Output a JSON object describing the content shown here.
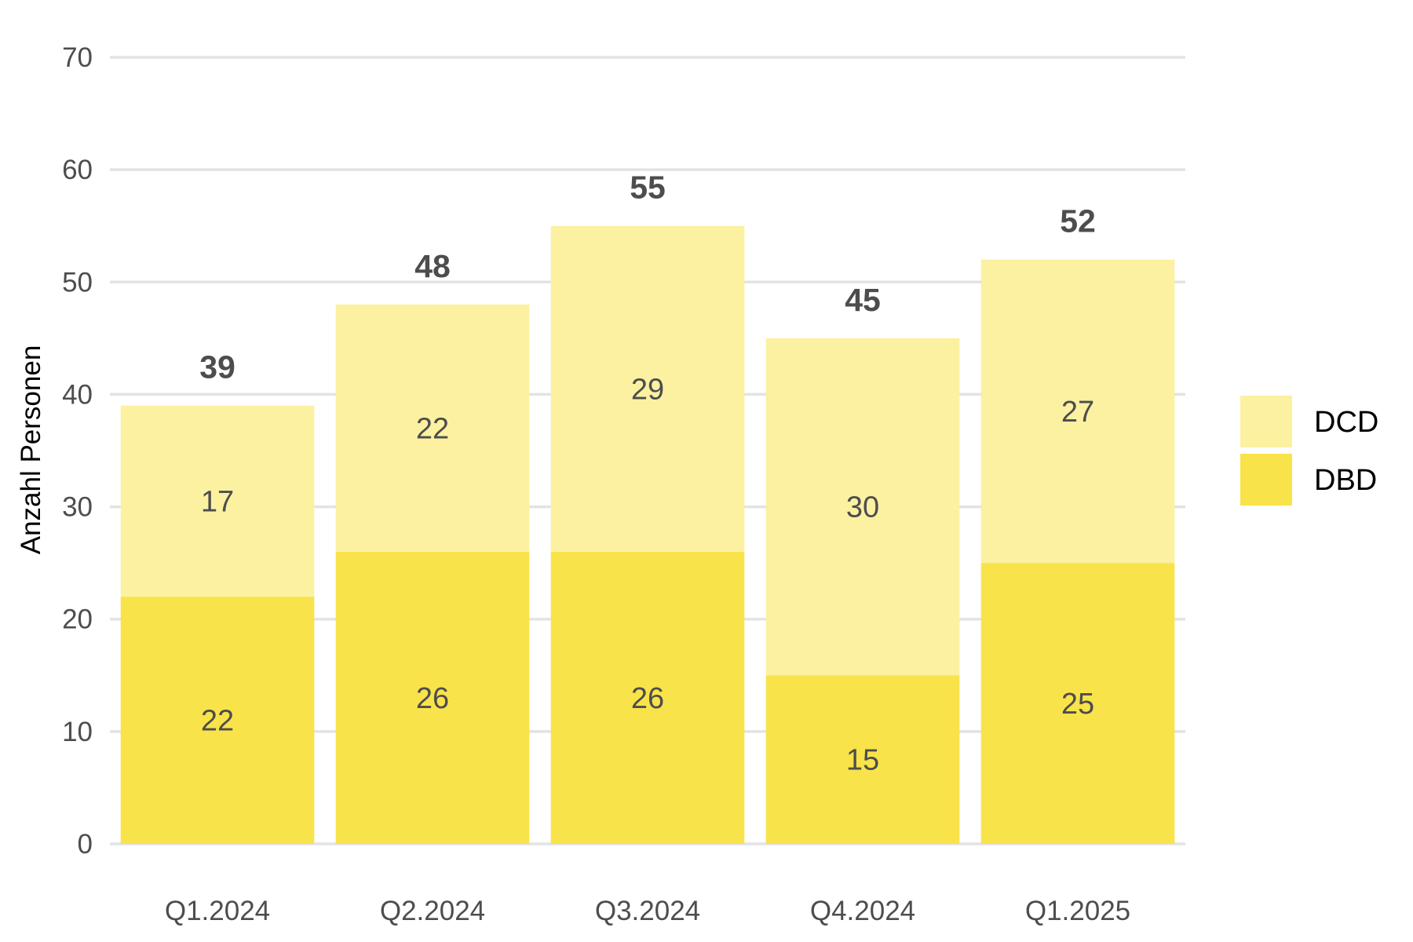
{
  "chart_data": {
    "type": "bar",
    "stacked": true,
    "title": "",
    "xlabel": "",
    "ylabel": "Anzahl Personen",
    "ylim": [
      0,
      70
    ],
    "yticks": [
      0,
      10,
      20,
      30,
      40,
      50,
      60,
      70
    ],
    "grid": true,
    "legend_position": "right",
    "categories": [
      "Q1.2024",
      "Q2.2024",
      "Q3.2024",
      "Q4.2024",
      "Q1.2025"
    ],
    "series": [
      {
        "name": "DBD",
        "values": [
          22,
          26,
          26,
          15,
          25
        ],
        "color": "#f9e34a"
      },
      {
        "name": "DCD",
        "values": [
          17,
          22,
          29,
          30,
          27
        ],
        "color": "#fbf1a1"
      }
    ],
    "totals": [
      39,
      48,
      55,
      45,
      52
    ],
    "legend_order": [
      "DCD",
      "DBD"
    ]
  }
}
